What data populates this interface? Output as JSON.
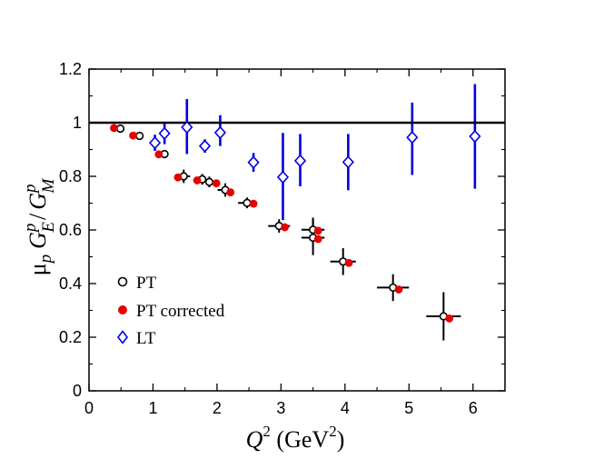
{
  "chart_data": {
    "type": "scatter",
    "xlim": [
      0,
      6.5
    ],
    "ylim": [
      0,
      1.2
    ],
    "xticks": [
      0,
      1,
      2,
      3,
      4,
      5,
      6
    ],
    "yticks": [
      0,
      0.2,
      0.4,
      0.6,
      0.8,
      1,
      1.2
    ],
    "xtick_labels": [
      "0",
      "1",
      "2",
      "3",
      "4",
      "5",
      "6"
    ],
    "ytick_labels": [
      "0",
      "0.2",
      "0.4",
      "0.6",
      "0.8",
      "1",
      "1.2"
    ],
    "xlabel": {
      "main": "Q",
      "sup": "2",
      "units": " (GeV",
      "units_sup": "2",
      "close": ")"
    },
    "ylabel": {
      "mu": "μ",
      "mu_sub": "p",
      "g1": "G",
      "g1_sup": "p",
      "g1_sub": "E",
      "slash": "/",
      "g2": "G",
      "g2_sup": "p",
      "g2_sub": "M"
    },
    "reference_line": 1,
    "grid": false,
    "legend_position": "bottom-left",
    "series": [
      {
        "name": "PT",
        "marker": "open-circle",
        "color": "#000000",
        "points": [
          {
            "x": 0.49,
            "y": 0.978,
            "xerr": 0,
            "yerr": 0
          },
          {
            "x": 0.79,
            "y": 0.951,
            "xerr": 0,
            "yerr": 0
          },
          {
            "x": 1.18,
            "y": 0.883,
            "xerr": 0,
            "yerr": 0
          },
          {
            "x": 1.48,
            "y": 0.8,
            "xerr": 0.1,
            "yerr": 0.025
          },
          {
            "x": 1.77,
            "y": 0.789,
            "xerr": 0.06,
            "yerr": 0.02
          },
          {
            "x": 1.88,
            "y": 0.779,
            "xerr": 0.06,
            "yerr": 0.02
          },
          {
            "x": 2.13,
            "y": 0.749,
            "xerr": 0.12,
            "yerr": 0.025
          },
          {
            "x": 2.47,
            "y": 0.701,
            "xerr": 0.14,
            "yerr": 0.02
          },
          {
            "x": 2.97,
            "y": 0.615,
            "xerr": 0.17,
            "yerr": 0.025
          },
          {
            "x": 3.5,
            "y": 0.601,
            "xerr": 0.18,
            "yerr": 0.045
          },
          {
            "x": 3.5,
            "y": 0.571,
            "xerr": 0.18,
            "yerr": 0.065
          },
          {
            "x": 3.97,
            "y": 0.482,
            "xerr": 0.2,
            "yerr": 0.05
          },
          {
            "x": 4.75,
            "y": 0.385,
            "xerr": 0.25,
            "yerr": 0.05
          },
          {
            "x": 5.54,
            "y": 0.278,
            "xerr": 0.27,
            "yerr": 0.09
          }
        ]
      },
      {
        "name": "PT corrected",
        "marker": "filled-circle",
        "color": "#e60000",
        "points": [
          {
            "x": 0.39,
            "y": 0.98
          },
          {
            "x": 0.69,
            "y": 0.952
          },
          {
            "x": 1.09,
            "y": 0.882
          },
          {
            "x": 1.39,
            "y": 0.796
          },
          {
            "x": 1.69,
            "y": 0.785
          },
          {
            "x": 1.99,
            "y": 0.774
          },
          {
            "x": 2.21,
            "y": 0.74
          },
          {
            "x": 2.57,
            "y": 0.698
          },
          {
            "x": 3.06,
            "y": 0.61
          },
          {
            "x": 3.58,
            "y": 0.597
          },
          {
            "x": 3.58,
            "y": 0.566
          },
          {
            "x": 4.06,
            "y": 0.477
          },
          {
            "x": 4.84,
            "y": 0.378
          },
          {
            "x": 5.63,
            "y": 0.27
          }
        ]
      },
      {
        "name": "LT",
        "marker": "open-diamond",
        "color": "#0000e0",
        "points": [
          {
            "x": 1.03,
            "y": 0.925,
            "yerr_low": 0.03,
            "yerr_high": 0.03
          },
          {
            "x": 1.18,
            "y": 0.96,
            "yerr_low": 0.04,
            "yerr_high": 0.04
          },
          {
            "x": 1.53,
            "y": 0.983,
            "yerr_low": 0.1,
            "yerr_high": 0.105
          },
          {
            "x": 1.81,
            "y": 0.913,
            "yerr_low": 0.025,
            "yerr_high": 0.025
          },
          {
            "x": 2.05,
            "y": 0.963,
            "yerr_low": 0.05,
            "yerr_high": 0.065
          },
          {
            "x": 2.57,
            "y": 0.852,
            "yerr_low": 0.035,
            "yerr_high": 0.035
          },
          {
            "x": 3.03,
            "y": 0.797,
            "yerr_low": 0.16,
            "yerr_high": 0.165
          },
          {
            "x": 3.3,
            "y": 0.858,
            "yerr_low": 0.095,
            "yerr_high": 0.1
          },
          {
            "x": 4.05,
            "y": 0.853,
            "yerr_low": 0.105,
            "yerr_high": 0.105
          },
          {
            "x": 5.05,
            "y": 0.945,
            "yerr_low": 0.14,
            "yerr_high": 0.13
          },
          {
            "x": 6.03,
            "y": 0.949,
            "yerr_low": 0.195,
            "yerr_high": 0.195
          }
        ]
      }
    ]
  }
}
